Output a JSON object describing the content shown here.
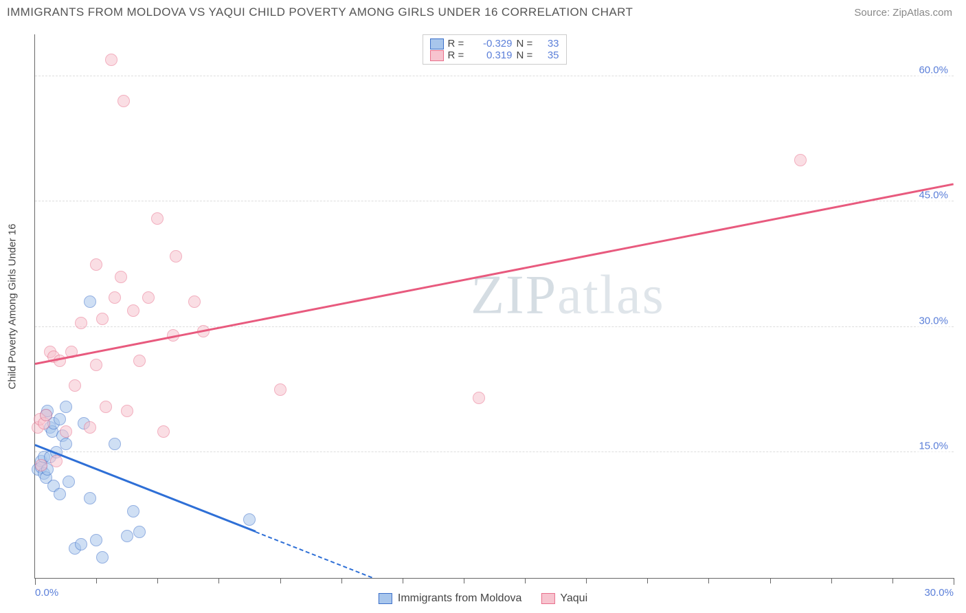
{
  "title": "IMMIGRANTS FROM MOLDOVA VS YAQUI CHILD POVERTY AMONG GIRLS UNDER 16 CORRELATION CHART",
  "source_label": "Source:",
  "source_value": "ZipAtlas.com",
  "watermark": {
    "part1": "ZIP",
    "part2": "atlas"
  },
  "yaxis_label": "Child Poverty Among Girls Under 16",
  "chart": {
    "type": "scatter",
    "xlim": [
      0,
      30
    ],
    "ylim": [
      0,
      65
    ],
    "x_ticks": [
      0,
      30
    ],
    "x_tick_labels": [
      "0.0%",
      "30.0%"
    ],
    "x_minor_ticks": [
      2,
      4,
      6,
      8,
      10,
      12,
      14,
      16,
      18,
      20,
      22,
      24,
      26,
      28
    ],
    "y_gridlines": [
      15,
      30,
      45,
      60
    ],
    "y_tick_map": {
      "15": "15.0%",
      "30": "30.0%",
      "45": "45.0%",
      "60": "60.0%"
    },
    "background_color": "#ffffff",
    "grid_color": "#dddddd",
    "axis_color": "#666666",
    "point_radius": 9,
    "series": [
      {
        "name": "Immigrants from Moldova",
        "fill": "#a8c6ec",
        "stroke": "#3b6fc9",
        "fill_opacity": 0.55,
        "R": "-0.329",
        "N": "33",
        "trend": {
          "x1": 0,
          "y1": 15.8,
          "x2": 11.0,
          "y2": 0,
          "color": "#2e6fd6",
          "width": 2.5,
          "dashed_from": 7.2
        },
        "points": [
          [
            0.1,
            13.0
          ],
          [
            0.2,
            14.0
          ],
          [
            0.2,
            13.2
          ],
          [
            0.3,
            12.5
          ],
          [
            0.3,
            14.5
          ],
          [
            0.35,
            19.5
          ],
          [
            0.35,
            12.0
          ],
          [
            0.4,
            20.0
          ],
          [
            0.4,
            13.0
          ],
          [
            0.5,
            18.0
          ],
          [
            0.5,
            14.5
          ],
          [
            0.55,
            17.5
          ],
          [
            0.6,
            18.5
          ],
          [
            0.6,
            11.0
          ],
          [
            0.7,
            15.0
          ],
          [
            0.8,
            19.0
          ],
          [
            0.8,
            10.0
          ],
          [
            0.9,
            17.0
          ],
          [
            1.0,
            20.5
          ],
          [
            1.0,
            16.0
          ],
          [
            1.1,
            11.5
          ],
          [
            1.3,
            3.5
          ],
          [
            1.5,
            4.0
          ],
          [
            1.6,
            18.5
          ],
          [
            1.8,
            33.0
          ],
          [
            1.8,
            9.5
          ],
          [
            2.0,
            4.5
          ],
          [
            2.2,
            2.5
          ],
          [
            2.6,
            16.0
          ],
          [
            3.0,
            5.0
          ],
          [
            3.2,
            8.0
          ],
          [
            3.4,
            5.5
          ],
          [
            7.0,
            7.0
          ]
        ]
      },
      {
        "name": "Yaqui",
        "fill": "#f7c4cf",
        "stroke": "#e86f8b",
        "fill_opacity": 0.55,
        "R": "0.319",
        "N": "35",
        "trend": {
          "x1": 0,
          "y1": 25.5,
          "x2": 30,
          "y2": 47.0,
          "color": "#e85a7e",
          "width": 2.5
        },
        "points": [
          [
            0.1,
            18.0
          ],
          [
            0.15,
            19.0
          ],
          [
            0.2,
            13.5
          ],
          [
            0.3,
            18.5
          ],
          [
            0.35,
            19.5
          ],
          [
            0.5,
            27.0
          ],
          [
            0.6,
            26.5
          ],
          [
            0.7,
            14.0
          ],
          [
            0.8,
            26.0
          ],
          [
            1.0,
            17.5
          ],
          [
            1.2,
            27.0
          ],
          [
            1.3,
            23.0
          ],
          [
            1.5,
            30.5
          ],
          [
            1.8,
            18.0
          ],
          [
            2.0,
            37.5
          ],
          [
            2.0,
            25.5
          ],
          [
            2.2,
            31.0
          ],
          [
            2.3,
            20.5
          ],
          [
            2.5,
            62.0
          ],
          [
            2.6,
            33.5
          ],
          [
            2.8,
            36.0
          ],
          [
            2.9,
            57.0
          ],
          [
            3.0,
            20.0
          ],
          [
            3.2,
            32.0
          ],
          [
            3.4,
            26.0
          ],
          [
            3.7,
            33.5
          ],
          [
            4.0,
            43.0
          ],
          [
            4.2,
            17.5
          ],
          [
            4.5,
            29.0
          ],
          [
            4.6,
            38.5
          ],
          [
            5.2,
            33.0
          ],
          [
            5.5,
            29.5
          ],
          [
            8.0,
            22.5
          ],
          [
            14.5,
            21.5
          ],
          [
            25.0,
            50.0
          ]
        ]
      }
    ]
  },
  "legend_bottom": [
    {
      "label": "Immigrants from Moldova",
      "fill": "#a8c6ec",
      "stroke": "#3b6fc9"
    },
    {
      "label": "Yaqui",
      "fill": "#f7c4cf",
      "stroke": "#e86f8b"
    }
  ]
}
